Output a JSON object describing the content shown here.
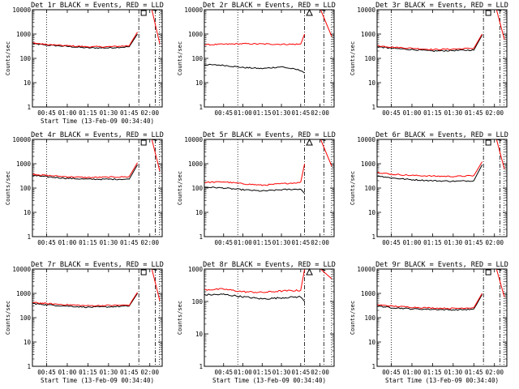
{
  "chart_data": [
    {
      "type": "line",
      "title": "Det 1r BLACK = Events, RED = LLD",
      "ylabel": "Counts/sec",
      "xlabel": "Start Time (13-Feb-09 00:34:40)",
      "show_xlabel": true,
      "xticks": [
        "00:45",
        "01:00",
        "01:15",
        "01:30",
        "01:45",
        "02:00"
      ],
      "yscale": "log",
      "ylim": [
        1,
        10000
      ],
      "yticks": [
        "1",
        "10",
        "100",
        "1000",
        "10000"
      ],
      "x_range": [
        "00:34:40",
        "02:09:00"
      ],
      "x": [
        "00:35",
        "00:45",
        "01:00",
        "01:15",
        "01:30",
        "01:45",
        "01:51"
      ],
      "series": [
        {
          "color": "#000000",
          "values": [
            400,
            350,
            310,
            270,
            270,
            300,
            1000
          ]
        },
        {
          "color": "#ff0000",
          "values": [
            430,
            370,
            330,
            300,
            300,
            330,
            1200
          ]
        }
      ],
      "burst": {
        "red": [
          10000,
          400
        ],
        "black": [
          10000,
          9000
        ]
      },
      "dotted_times": [
        "00:45",
        "02:07"
      ],
      "dashdot_times": [
        "01:52",
        "02:04"
      ],
      "marker": "square"
    },
    {
      "type": "line",
      "title": "Det 2r BLACK = Events, RED = LLD",
      "ylabel": "Counts/sec",
      "xlabel": "Start Time (13-Feb-09 00:34:40)",
      "show_xlabel": false,
      "xticks": [
        "00:45",
        "01:00",
        "01:15",
        "01:30",
        "01:45",
        "02:00"
      ],
      "yscale": "log",
      "ylim": [
        1,
        10000
      ],
      "yticks": [
        "1",
        "10",
        "100",
        "1000",
        "10000"
      ],
      "x_range": [
        "00:30:00",
        "02:11:00"
      ],
      "x": [
        "00:30",
        "00:45",
        "01:00",
        "01:15",
        "01:30",
        "01:45",
        "01:48"
      ],
      "series": [
        {
          "color": "#000000",
          "values": [
            55,
            52,
            42,
            38,
            45,
            32,
            25
          ]
        },
        {
          "color": "#ff0000",
          "values": [
            360,
            380,
            400,
            390,
            380,
            380,
            1000
          ]
        }
      ],
      "burst": {
        "red": [
          10000,
          800
        ],
        "black": [
          10000,
          9000
        ]
      },
      "dotted_times": [
        "00:56",
        "02:09"
      ],
      "dashdot_times": [
        "01:48",
        "02:03"
      ],
      "marker": "triangle"
    },
    {
      "type": "line",
      "title": "Det 3r BLACK = Events, RED = LLD",
      "ylabel": "Counts/sec",
      "xlabel": "Start Time (13-Feb-09 00:34:40)",
      "show_xlabel": false,
      "xticks": [
        "00:45",
        "01:00",
        "01:15",
        "01:30",
        "01:45",
        "02:00"
      ],
      "yscale": "log",
      "ylim": [
        1,
        10000
      ],
      "yticks": [
        "1",
        "10",
        "100",
        "1000",
        "10000"
      ],
      "x_range": [
        "00:34:40",
        "02:09:00"
      ],
      "x": [
        "00:35",
        "00:45",
        "01:00",
        "01:15",
        "01:30",
        "01:45",
        "01:51"
      ],
      "series": [
        {
          "color": "#000000",
          "values": [
            300,
            260,
            230,
            200,
            210,
            220,
            900
          ]
        },
        {
          "color": "#ff0000",
          "values": [
            330,
            290,
            260,
            230,
            240,
            260,
            1000
          ]
        }
      ],
      "burst": {
        "red": [
          10000,
          600
        ],
        "black": [
          10000,
          9000
        ]
      },
      "dotted_times": [
        "00:45",
        "02:07"
      ],
      "dashdot_times": [
        "01:52",
        "02:04"
      ],
      "marker": "square"
    },
    {
      "type": "line",
      "title": "Det 4r BLACK = Events, RED = LLD",
      "ylabel": "Counts/sec",
      "xlabel": "Start Time (13-Feb-09 00:34:40)",
      "show_xlabel": false,
      "xticks": [
        "00:45",
        "01:00",
        "01:15",
        "01:30",
        "01:45",
        "02:00"
      ],
      "yscale": "log",
      "ylim": [
        1,
        10000
      ],
      "yticks": [
        "1",
        "10",
        "100",
        "1000",
        "10000"
      ],
      "x_range": [
        "00:34:40",
        "02:09:00"
      ],
      "x": [
        "00:35",
        "00:45",
        "01:00",
        "01:15",
        "01:30",
        "01:45",
        "01:51"
      ],
      "series": [
        {
          "color": "#000000",
          "values": [
            330,
            290,
            250,
            230,
            230,
            230,
            900
          ]
        },
        {
          "color": "#ff0000",
          "values": [
            370,
            330,
            290,
            270,
            280,
            290,
            1100
          ]
        }
      ],
      "burst": {
        "red": [
          10000,
          500
        ],
        "black": [
          10000,
          9000
        ]
      },
      "dotted_times": [
        "00:45",
        "02:07"
      ],
      "dashdot_times": [
        "01:52",
        "02:04"
      ],
      "marker": "square"
    },
    {
      "type": "line",
      "title": "Det 5r BLACK = Events, RED = LLD",
      "ylabel": "Counts/sec",
      "xlabel": "Start Time (13-Feb-09 00:34:40)",
      "show_xlabel": false,
      "xticks": [
        "00:45",
        "01:00",
        "01:15",
        "01:30",
        "01:45",
        "02:00"
      ],
      "yscale": "log",
      "ylim": [
        1,
        10000
      ],
      "yticks": [
        "1",
        "10",
        "100",
        "1000",
        "10000"
      ],
      "x_range": [
        "00:30:00",
        "02:11:00"
      ],
      "x": [
        "00:30",
        "00:45",
        "01:00",
        "01:15",
        "01:30",
        "01:45",
        "01:48"
      ],
      "series": [
        {
          "color": "#000000",
          "values": [
            110,
            100,
            85,
            75,
            85,
            90,
            60
          ]
        },
        {
          "color": "#ff0000",
          "values": [
            170,
            180,
            150,
            130,
            150,
            170,
            1000
          ]
        }
      ],
      "burst": {
        "red": [
          10000,
          800
        ],
        "black": [
          10000,
          9000
        ]
      },
      "dotted_times": [
        "00:56",
        "02:09"
      ],
      "dashdot_times": [
        "01:48",
        "02:03"
      ],
      "marker": "triangle"
    },
    {
      "type": "line",
      "title": "Det 6r BLACK = Events, RED = LLD",
      "ylabel": "Counts/sec",
      "xlabel": "Start Time (13-Feb-09 00:34:40)",
      "show_xlabel": false,
      "xticks": [
        "00:45",
        "01:00",
        "01:15",
        "01:30",
        "01:45",
        "02:00"
      ],
      "yscale": "log",
      "ylim": [
        1,
        10000
      ],
      "yticks": [
        "1",
        "10",
        "100",
        "1000",
        "10000"
      ],
      "x_range": [
        "00:34:40",
        "02:09:00"
      ],
      "x": [
        "00:35",
        "00:45",
        "01:00",
        "01:15",
        "01:30",
        "01:45",
        "01:51"
      ],
      "series": [
        {
          "color": "#000000",
          "values": [
            320,
            260,
            220,
            200,
            190,
            200,
            900
          ]
        },
        {
          "color": "#ff0000",
          "values": [
            440,
            370,
            330,
            310,
            300,
            320,
            1200
          ]
        }
      ],
      "burst": {
        "red": [
          10000,
          600
        ],
        "black": [
          10000,
          9000
        ]
      },
      "dotted_times": [
        "00:45",
        "02:07"
      ],
      "dashdot_times": [
        "01:52",
        "02:04"
      ],
      "marker": "square"
    },
    {
      "type": "line",
      "title": "Det 7r BLACK = Events, RED = LLD",
      "ylabel": "Counts/sec",
      "xlabel": "Start Time (13-Feb-09 00:34:40)",
      "show_xlabel": true,
      "xticks": [
        "00:45",
        "01:00",
        "01:15",
        "01:30",
        "01:45",
        "02:00"
      ],
      "yscale": "log",
      "ylim": [
        1,
        10000
      ],
      "yticks": [
        "1",
        "10",
        "100",
        "1000",
        "10000"
      ],
      "x_range": [
        "00:34:40",
        "02:09:00"
      ],
      "x": [
        "00:35",
        "00:45",
        "01:00",
        "01:15",
        "01:30",
        "01:45",
        "01:51"
      ],
      "series": [
        {
          "color": "#000000",
          "values": [
            380,
            340,
            300,
            270,
            280,
            300,
            1000
          ]
        },
        {
          "color": "#ff0000",
          "values": [
            420,
            380,
            340,
            310,
            320,
            330,
            1100
          ]
        }
      ],
      "burst": {
        "red": [
          10000,
          500
        ],
        "black": [
          10000,
          9000
        ]
      },
      "dotted_times": [
        "00:45",
        "02:07"
      ],
      "dashdot_times": [
        "01:52",
        "02:04"
      ],
      "marker": "square"
    },
    {
      "type": "line",
      "title": "Det 8r BLACK = Events, RED = LLD",
      "ylabel": "Counts/sec",
      "xlabel": "Start Time (13-Feb-09 00:34:40)",
      "show_xlabel": true,
      "xticks": [
        "00:45",
        "01:00",
        "01:15",
        "01:30",
        "01:45",
        "02:00"
      ],
      "yscale": "log",
      "ylim": [
        1,
        1000
      ],
      "yticks": [
        "1",
        "10",
        "100",
        "1000"
      ],
      "x_range": [
        "00:30:00",
        "02:11:00"
      ],
      "x": [
        "00:30",
        "00:45",
        "01:00",
        "01:15",
        "01:30",
        "01:45",
        "01:48"
      ],
      "series": [
        {
          "color": "#000000",
          "values": [
            160,
            165,
            140,
            120,
            130,
            140,
            100
          ]
        },
        {
          "color": "#ff0000",
          "values": [
            230,
            240,
            200,
            190,
            210,
            220,
            1000
          ]
        }
      ],
      "burst": {
        "red": [
          1000,
          500
        ],
        "black": [
          1000,
          900
        ]
      },
      "dotted_times": [
        "00:56",
        "02:09"
      ],
      "dashdot_times": [
        "01:48",
        "02:03"
      ],
      "marker": "triangle"
    },
    {
      "type": "line",
      "title": "Det 9r BLACK = Events, RED = LLD",
      "ylabel": "Counts/sec",
      "xlabel": "Start Time (13-Feb-09 00:34:40)",
      "show_xlabel": true,
      "xticks": [
        "00:45",
        "01:00",
        "01:15",
        "01:30",
        "01:45",
        "02:00"
      ],
      "yscale": "log",
      "ylim": [
        1,
        10000
      ],
      "yticks": [
        "1",
        "10",
        "100",
        "1000",
        "10000"
      ],
      "x_range": [
        "00:34:40",
        "02:09:00"
      ],
      "x": [
        "00:35",
        "00:45",
        "01:00",
        "01:15",
        "01:30",
        "01:45",
        "01:51"
      ],
      "series": [
        {
          "color": "#000000",
          "values": [
            300,
            260,
            230,
            220,
            210,
            220,
            900
          ]
        },
        {
          "color": "#ff0000",
          "values": [
            340,
            300,
            270,
            250,
            240,
            260,
            1000
          ]
        }
      ],
      "burst": {
        "red": [
          10000,
          700
        ],
        "black": [
          10000,
          9000
        ]
      },
      "dotted_times": [
        "00:45",
        "02:07"
      ],
      "dashdot_times": [
        "01:52",
        "02:04"
      ],
      "marker": "square"
    }
  ]
}
